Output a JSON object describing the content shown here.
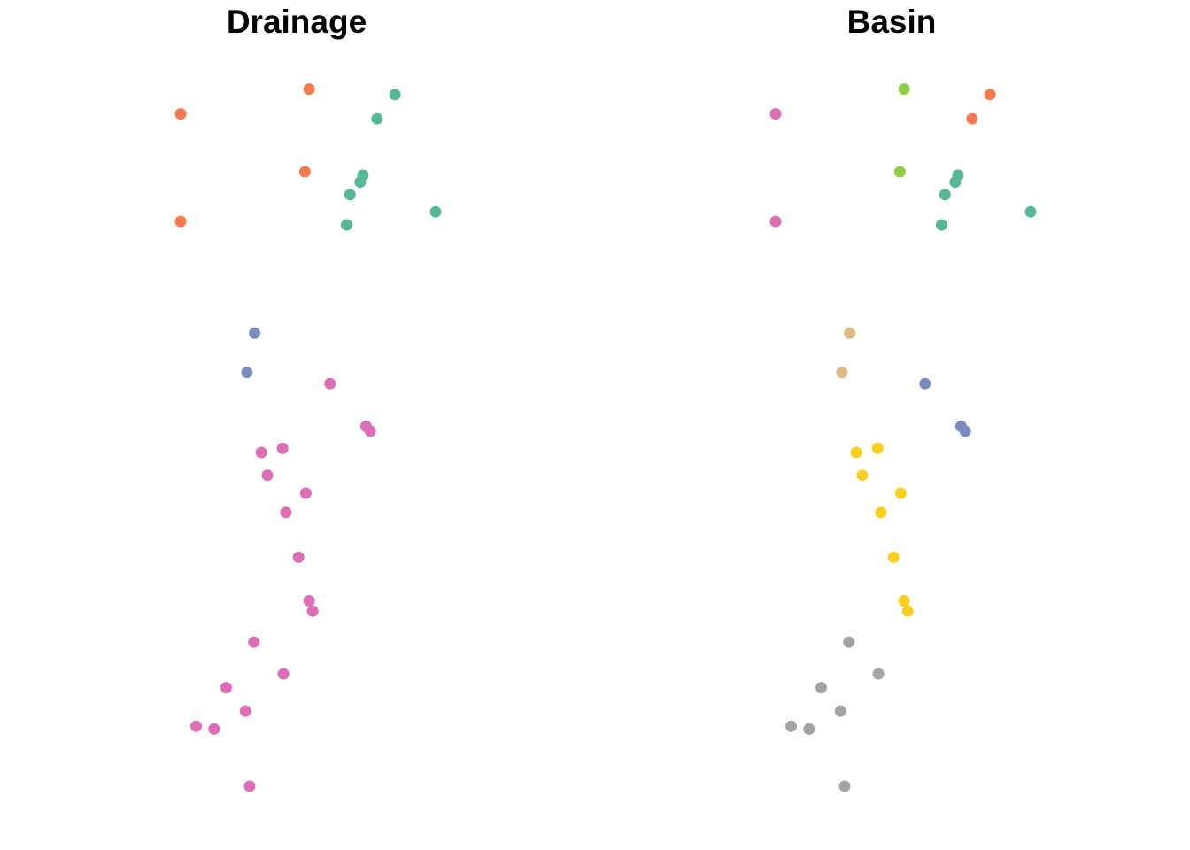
{
  "palette": {
    "orange": "#F57A4E",
    "teal": "#55B995",
    "blue": "#7A8BBF",
    "pink": "#DD6DB5",
    "lime": "#8FCD45",
    "tan": "#DDBB84",
    "yellow": "#FBCF1F",
    "gray": "#A3A3A3"
  },
  "chart_data": [
    {
      "type": "scatter",
      "title": "Drainage",
      "xlabel": "",
      "ylabel": "",
      "axes_visible": false,
      "grid": false,
      "legend": "none",
      "xlim": [
        0,
        1
      ],
      "ylim": [
        0,
        1
      ],
      "points": [
        {
          "x": 0.542,
          "y": 0.971,
          "color": "orange"
        },
        {
          "x": 0.077,
          "y": 0.935,
          "color": "orange"
        },
        {
          "x": 0.527,
          "y": 0.851,
          "color": "orange"
        },
        {
          "x": 0.077,
          "y": 0.779,
          "color": "orange"
        },
        {
          "x": 0.853,
          "y": 0.963,
          "color": "teal"
        },
        {
          "x": 0.788,
          "y": 0.928,
          "color": "teal"
        },
        {
          "x": 0.737,
          "y": 0.846,
          "color": "teal"
        },
        {
          "x": 0.727,
          "y": 0.836,
          "color": "teal"
        },
        {
          "x": 0.69,
          "y": 0.818,
          "color": "teal"
        },
        {
          "x": 1.0,
          "y": 0.793,
          "color": "teal"
        },
        {
          "x": 0.678,
          "y": 0.774,
          "color": "teal"
        },
        {
          "x": 0.345,
          "y": 0.617,
          "color": "blue"
        },
        {
          "x": 0.317,
          "y": 0.56,
          "color": "blue"
        },
        {
          "x": 0.618,
          "y": 0.544,
          "color": "pink"
        },
        {
          "x": 0.748,
          "y": 0.482,
          "color": "pink"
        },
        {
          "x": 0.763,
          "y": 0.475,
          "color": "pink"
        },
        {
          "x": 0.446,
          "y": 0.45,
          "color": "pink"
        },
        {
          "x": 0.369,
          "y": 0.444,
          "color": "pink"
        },
        {
          "x": 0.391,
          "y": 0.411,
          "color": "pink"
        },
        {
          "x": 0.53,
          "y": 0.385,
          "color": "pink"
        },
        {
          "x": 0.458,
          "y": 0.357,
          "color": "pink"
        },
        {
          "x": 0.504,
          "y": 0.292,
          "color": "pink"
        },
        {
          "x": 0.542,
          "y": 0.229,
          "color": "pink"
        },
        {
          "x": 0.555,
          "y": 0.214,
          "color": "pink"
        },
        {
          "x": 0.342,
          "y": 0.169,
          "color": "pink"
        },
        {
          "x": 0.449,
          "y": 0.123,
          "color": "pink"
        },
        {
          "x": 0.242,
          "y": 0.103,
          "color": "pink"
        },
        {
          "x": 0.312,
          "y": 0.069,
          "color": "pink"
        },
        {
          "x": 0.133,
          "y": 0.047,
          "color": "pink"
        },
        {
          "x": 0.198,
          "y": 0.043,
          "color": "pink"
        },
        {
          "x": 0.327,
          "y": -0.04,
          "color": "pink"
        }
      ]
    },
    {
      "type": "scatter",
      "title": "Basin",
      "xlabel": "",
      "ylabel": "",
      "axes_visible": false,
      "grid": false,
      "legend": "none",
      "xlim": [
        0,
        1
      ],
      "ylim": [
        0,
        1
      ],
      "points": [
        {
          "x": 0.542,
          "y": 0.971,
          "color": "lime"
        },
        {
          "x": 0.077,
          "y": 0.935,
          "color": "pink"
        },
        {
          "x": 0.527,
          "y": 0.851,
          "color": "lime"
        },
        {
          "x": 0.077,
          "y": 0.779,
          "color": "pink"
        },
        {
          "x": 0.853,
          "y": 0.963,
          "color": "orange"
        },
        {
          "x": 0.788,
          "y": 0.928,
          "color": "orange"
        },
        {
          "x": 0.737,
          "y": 0.846,
          "color": "teal"
        },
        {
          "x": 0.727,
          "y": 0.836,
          "color": "teal"
        },
        {
          "x": 0.69,
          "y": 0.818,
          "color": "teal"
        },
        {
          "x": 1.0,
          "y": 0.793,
          "color": "teal"
        },
        {
          "x": 0.678,
          "y": 0.774,
          "color": "teal"
        },
        {
          "x": 0.345,
          "y": 0.617,
          "color": "tan"
        },
        {
          "x": 0.317,
          "y": 0.56,
          "color": "tan"
        },
        {
          "x": 0.618,
          "y": 0.544,
          "color": "blue"
        },
        {
          "x": 0.748,
          "y": 0.482,
          "color": "blue"
        },
        {
          "x": 0.763,
          "y": 0.475,
          "color": "blue"
        },
        {
          "x": 0.446,
          "y": 0.45,
          "color": "yellow"
        },
        {
          "x": 0.369,
          "y": 0.444,
          "color": "yellow"
        },
        {
          "x": 0.391,
          "y": 0.411,
          "color": "yellow"
        },
        {
          "x": 0.53,
          "y": 0.385,
          "color": "yellow"
        },
        {
          "x": 0.458,
          "y": 0.357,
          "color": "yellow"
        },
        {
          "x": 0.504,
          "y": 0.292,
          "color": "yellow"
        },
        {
          "x": 0.542,
          "y": 0.229,
          "color": "yellow"
        },
        {
          "x": 0.555,
          "y": 0.214,
          "color": "yellow"
        },
        {
          "x": 0.342,
          "y": 0.169,
          "color": "gray"
        },
        {
          "x": 0.449,
          "y": 0.123,
          "color": "gray"
        },
        {
          "x": 0.242,
          "y": 0.103,
          "color": "gray"
        },
        {
          "x": 0.312,
          "y": 0.069,
          "color": "gray"
        },
        {
          "x": 0.133,
          "y": 0.047,
          "color": "gray"
        },
        {
          "x": 0.198,
          "y": 0.043,
          "color": "gray"
        },
        {
          "x": 0.327,
          "y": -0.04,
          "color": "gray"
        }
      ]
    }
  ]
}
